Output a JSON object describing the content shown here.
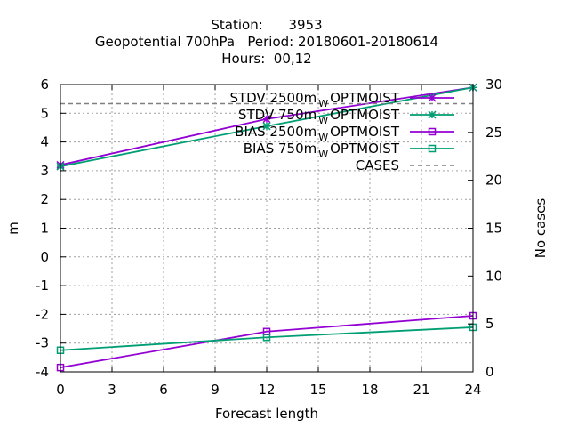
{
  "chart_data": {
    "type": "line",
    "title_lines": [
      "Station:      3953",
      "Geopotential 700hPa   Period: 20180601-20180614",
      "Hours:  00,12"
    ],
    "xlabel": "Forecast length",
    "ylabel": "m",
    "y2label": "No cases",
    "x": [
      0,
      12,
      24
    ],
    "xticks": [
      "0",
      "3",
      "6",
      "9",
      "12",
      "15",
      "18",
      "21",
      "24"
    ],
    "xlim": [
      0,
      24
    ],
    "ylim": [
      -4,
      6
    ],
    "yticks": [
      "-4",
      "-3",
      "-2",
      "-1",
      "0",
      "1",
      "2",
      "3",
      "4",
      "5",
      "6"
    ],
    "y2lim": [
      0,
      30
    ],
    "y2ticks": [
      "0",
      "5",
      "10",
      "15",
      "20",
      "25",
      "30"
    ],
    "grid": true,
    "legend_position": "top-right",
    "series": [
      {
        "name": "STDV 2500m",
        "legend_sub": "W",
        "legend_suffix": "OPTMOIST",
        "color": "#9400d3",
        "marker": "star",
        "axis": "y1",
        "values": [
          3.2,
          4.8,
          5.9
        ]
      },
      {
        "name": "STDV 750m",
        "legend_sub": "W",
        "legend_suffix": "OPTMOIST",
        "color": "#009e73",
        "marker": "star",
        "axis": "y1",
        "values": [
          3.15,
          4.55,
          5.9
        ]
      },
      {
        "name": "BIAS 2500m",
        "legend_sub": "W",
        "legend_suffix": "OPTMOIST",
        "color": "#9400d3",
        "marker": "square",
        "axis": "y1",
        "values": [
          -3.85,
          -2.6,
          -2.05
        ]
      },
      {
        "name": "BIAS 750m",
        "legend_sub": "W",
        "legend_suffix": "OPTMOIST",
        "color": "#009e73",
        "marker": "square",
        "axis": "y1",
        "values": [
          -3.25,
          -2.8,
          -2.45
        ]
      },
      {
        "name": "CASES",
        "legend_sub": "",
        "legend_suffix": "",
        "color": "#808080",
        "marker": "none",
        "dashed": true,
        "axis": "y2",
        "values": [
          28,
          28,
          28
        ]
      }
    ]
  }
}
